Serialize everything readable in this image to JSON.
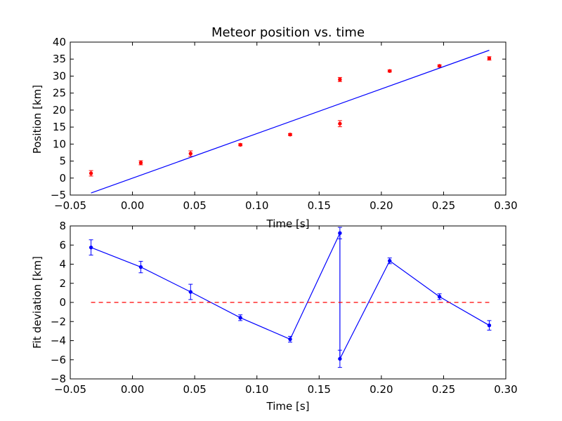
{
  "chart_data": [
    {
      "type": "scatter",
      "title": "Meteor position vs. time",
      "xlabel": "Time [s]",
      "ylabel": "Position [km]",
      "xlim": [
        -0.05,
        0.3
      ],
      "ylim": [
        -5,
        40
      ],
      "xticks": [
        -0.05,
        0.0,
        0.05,
        0.1,
        0.15,
        0.2,
        0.25,
        0.3
      ],
      "xtick_labels": [
        "−0.05",
        "0.00",
        "0.05",
        "0.10",
        "0.15",
        "0.20",
        "0.25",
        "0.30"
      ],
      "yticks": [
        -5,
        0,
        5,
        10,
        15,
        20,
        25,
        30,
        35,
        40
      ],
      "ytick_labels": [
        "−5",
        "0",
        "5",
        "10",
        "15",
        "20",
        "25",
        "30",
        "35",
        "40"
      ],
      "grid": false,
      "series": [
        {
          "kind": "errorbar-points",
          "color": "#ff0000",
          "x": [
            -0.0333,
            0.0067,
            0.0467,
            0.0867,
            0.1267,
            0.1667,
            0.1667,
            0.2067,
            0.2467,
            0.2867
          ],
          "y": [
            1.4,
            4.5,
            7.2,
            9.8,
            12.8,
            29.0,
            16.0,
            31.5,
            33.0,
            35.2
          ],
          "yerr": [
            0.8,
            0.6,
            0.8,
            0.3,
            0.3,
            0.6,
            0.9,
            0.3,
            0.3,
            0.5
          ]
        },
        {
          "kind": "fit-line",
          "color": "#0000ff",
          "x": [
            -0.0333,
            0.2867
          ],
          "y": [
            -4.4,
            37.6
          ]
        }
      ]
    },
    {
      "type": "line",
      "title": "",
      "xlabel": "Time [s]",
      "ylabel": "Fit deviation [km]",
      "xlim": [
        -0.05,
        0.3
      ],
      "ylim": [
        -8,
        8
      ],
      "xticks": [
        -0.05,
        0.0,
        0.05,
        0.1,
        0.15,
        0.2,
        0.25,
        0.3
      ],
      "xtick_labels": [
        "−0.05",
        "0.00",
        "0.05",
        "0.10",
        "0.15",
        "0.20",
        "0.25",
        "0.30"
      ],
      "yticks": [
        -8,
        -6,
        -4,
        -2,
        0,
        2,
        4,
        6,
        8
      ],
      "ytick_labels": [
        "−8",
        "−6",
        "−4",
        "−2",
        "0",
        "2",
        "4",
        "6",
        "8"
      ],
      "grid": false,
      "series": [
        {
          "kind": "errorbar-line",
          "color": "#0000ff",
          "x": [
            -0.0333,
            0.0067,
            0.0467,
            0.0867,
            0.1267,
            0.1667,
            0.1667,
            0.2067,
            0.2467,
            0.2867
          ],
          "y": [
            5.75,
            3.7,
            1.1,
            -1.6,
            -3.85,
            7.25,
            -5.9,
            4.35,
            0.6,
            -2.4
          ],
          "yerr": [
            0.8,
            0.6,
            0.8,
            0.3,
            0.3,
            0.6,
            0.9,
            0.3,
            0.3,
            0.5
          ]
        },
        {
          "kind": "reference-line",
          "color": "#ff0000",
          "dash": "dashed",
          "x": [
            -0.0333,
            0.2867
          ],
          "y": [
            0,
            0
          ]
        }
      ]
    }
  ]
}
